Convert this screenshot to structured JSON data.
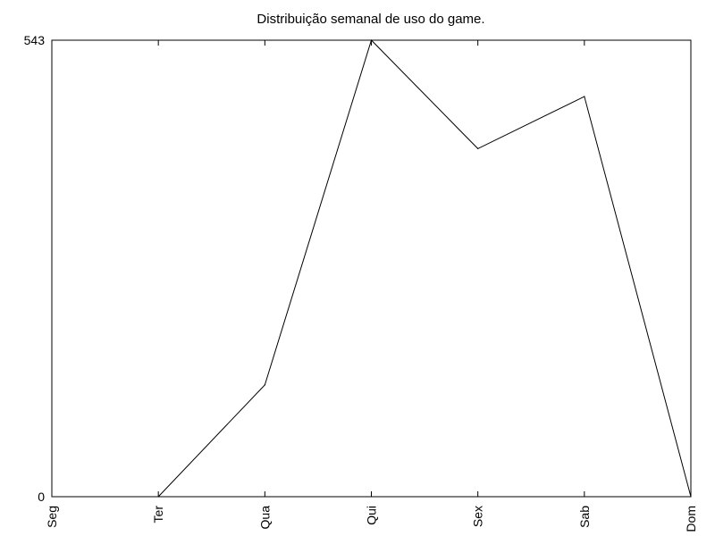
{
  "chart_data": {
    "type": "line",
    "title": "Distribuição semanal de uso do game.",
    "xlabel": "",
    "ylabel": "",
    "categories": [
      "Seg",
      "Ter",
      "Qua",
      "Qui",
      "Sex",
      "Sab",
      "Dom"
    ],
    "series": [
      {
        "values": [
          null,
          0,
          133,
          543,
          414,
          476,
          0
        ]
      }
    ],
    "ylim": [
      0,
      543
    ],
    "y_ticks": [
      "0",
      "543"
    ],
    "grid": false,
    "legend": "none",
    "colors": {
      "line": "#000000",
      "axes": "#000000",
      "background": "#ffffff"
    }
  }
}
